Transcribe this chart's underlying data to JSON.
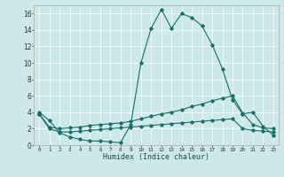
{
  "xlabel": "Humidex (Indice chaleur)",
  "xlim": [
    -0.5,
    23.5
  ],
  "ylim": [
    0,
    17
  ],
  "xticks": [
    0,
    1,
    2,
    3,
    4,
    5,
    6,
    7,
    8,
    9,
    10,
    11,
    12,
    13,
    14,
    15,
    16,
    17,
    18,
    19,
    20,
    21,
    22,
    23
  ],
  "yticks": [
    0,
    2,
    4,
    6,
    8,
    10,
    12,
    14,
    16
  ],
  "bg_color": "#cce8e8",
  "line_color": "#1a6e6a",
  "series1_x": [
    0,
    1,
    2,
    3,
    4,
    5,
    6,
    7,
    8,
    9,
    10,
    11,
    12,
    13,
    14,
    15,
    16,
    17,
    18,
    19,
    20,
    21,
    22,
    23
  ],
  "series1_y": [
    4.0,
    3.0,
    1.5,
    1.0,
    0.7,
    0.5,
    0.5,
    0.4,
    0.3,
    2.5,
    10.0,
    14.2,
    16.5,
    14.2,
    16.0,
    15.5,
    14.5,
    12.2,
    9.3,
    5.5,
    3.8,
    4.0,
    2.3,
    1.2
  ],
  "series2_x": [
    0,
    1,
    2,
    3,
    4,
    5,
    6,
    7,
    8,
    9,
    10,
    11,
    12,
    13,
    14,
    15,
    16,
    17,
    18,
    19,
    20,
    21,
    22,
    23
  ],
  "series2_y": [
    3.8,
    2.2,
    2.0,
    2.1,
    2.2,
    2.4,
    2.5,
    2.6,
    2.7,
    2.9,
    3.2,
    3.5,
    3.8,
    4.0,
    4.3,
    4.7,
    5.0,
    5.4,
    5.7,
    6.0,
    3.9,
    2.5,
    2.1,
    2.0
  ],
  "series3_x": [
    0,
    1,
    2,
    3,
    4,
    5,
    6,
    7,
    8,
    9,
    10,
    11,
    12,
    13,
    14,
    15,
    16,
    17,
    18,
    19,
    20,
    21,
    22,
    23
  ],
  "series3_y": [
    3.8,
    2.0,
    1.6,
    1.6,
    1.7,
    1.8,
    1.9,
    2.0,
    2.1,
    2.2,
    2.3,
    2.4,
    2.5,
    2.6,
    2.7,
    2.8,
    2.9,
    3.0,
    3.1,
    3.2,
    2.0,
    1.8,
    1.7,
    1.6
  ]
}
